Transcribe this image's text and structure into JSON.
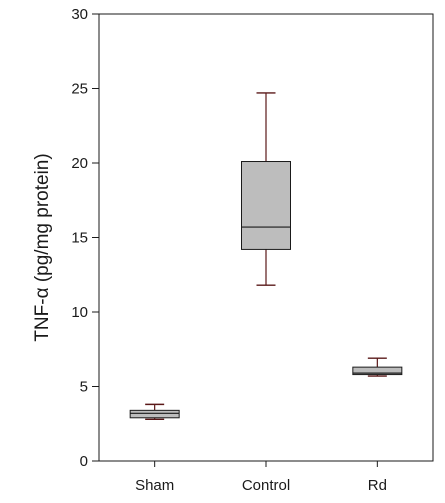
{
  "chart_data": {
    "type": "box",
    "title": "",
    "xlabel": "",
    "ylabel": "TNF-α (pg/mg protein)",
    "ylim": [
      0,
      30
    ],
    "yticks": [
      0,
      5,
      10,
      15,
      20,
      25,
      30
    ],
    "grid": false,
    "categories": [
      "Sham",
      "Control",
      "Rd"
    ],
    "boxes": [
      {
        "category": "Sham",
        "whisker_low": 2.8,
        "q1": 2.9,
        "median": 3.2,
        "q3": 3.4,
        "whisker_high": 3.8
      },
      {
        "category": "Control",
        "whisker_low": 11.8,
        "q1": 14.2,
        "median": 15.7,
        "q3": 20.1,
        "whisker_high": 24.7
      },
      {
        "category": "Rd",
        "whisker_low": 5.7,
        "q1": 5.8,
        "median": 5.9,
        "q3": 6.3,
        "whisker_high": 6.9
      }
    ],
    "colors": {
      "box_fill": "#bdbdbd",
      "outline": "#1a1a1a",
      "whisker": "#5a1818"
    }
  }
}
